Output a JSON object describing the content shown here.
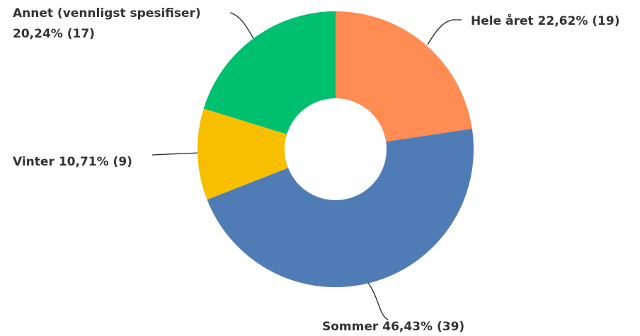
{
  "chart_data": {
    "type": "donut",
    "categories": [
      "Hele året",
      "Sommer",
      "Vinter",
      "Annet (vennligst spesifiser)"
    ],
    "values": [
      22.62,
      46.43,
      10.71,
      20.24
    ],
    "value_labels": [
      "22,62% (19)",
      "46,43% (39)",
      "10,71% (9)",
      "20,24% (17)"
    ],
    "colors": [
      "#ff8c52",
      "#507cb6",
      "#f8be00",
      "#00bf6f"
    ]
  }
}
